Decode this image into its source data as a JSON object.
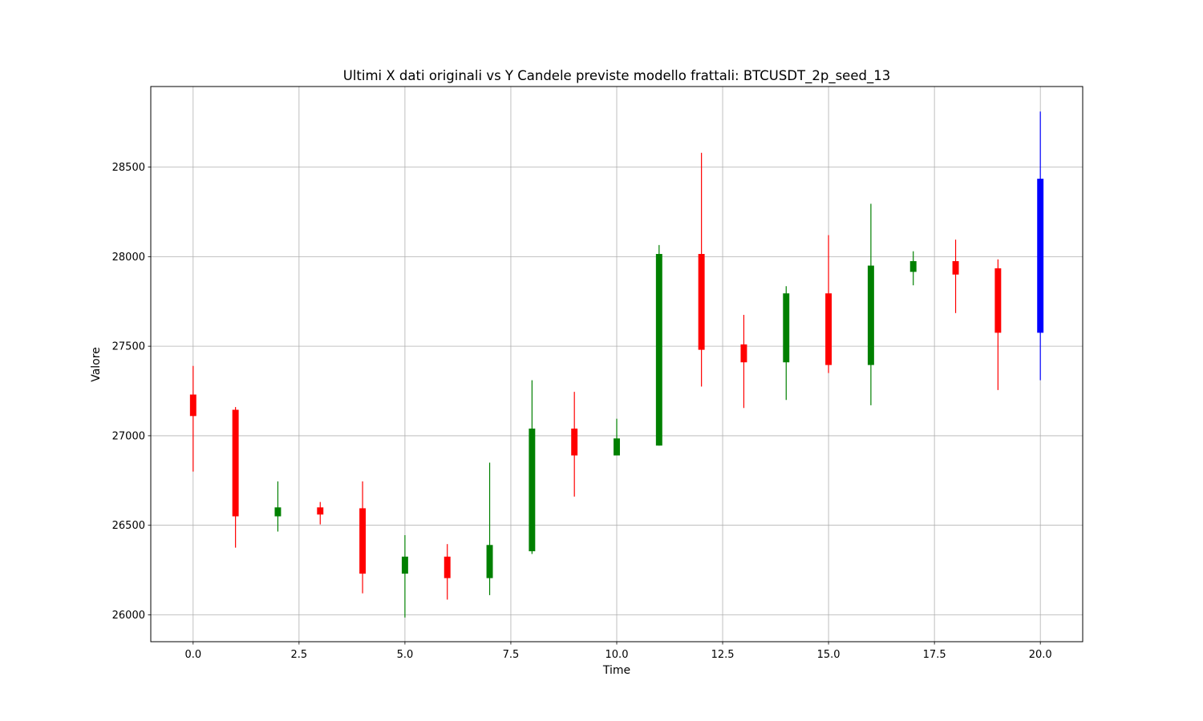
{
  "chart_data": {
    "type": "candlestick",
    "title": "Ultimi X dati originali vs Y Candele previste modello frattali: BTCUSDT_2p_seed_13",
    "xlabel": "Time",
    "ylabel": "Valore",
    "xlim": [
      -1,
      21
    ],
    "ylim": [
      25850,
      28950
    ],
    "xticks": [
      0.0,
      2.5,
      5.0,
      7.5,
      10.0,
      12.5,
      15.0,
      17.5,
      20.0
    ],
    "xtick_labels": [
      "0.0",
      "2.5",
      "5.0",
      "7.5",
      "10.0",
      "12.5",
      "15.0",
      "17.5",
      "20.0"
    ],
    "yticks": [
      26000,
      26500,
      27000,
      27500,
      28000,
      28500
    ],
    "ytick_labels": [
      "26000",
      "26500",
      "27000",
      "27500",
      "28000",
      "28500"
    ],
    "grid": true,
    "colors": {
      "up": "#008000",
      "down": "#ff0000",
      "predicted": "#0000ff"
    },
    "candles": [
      {
        "t": 0,
        "open": 27230,
        "close": 27110,
        "high": 27390,
        "low": 26800,
        "kind": "down"
      },
      {
        "t": 1,
        "open": 27145,
        "close": 26550,
        "high": 27160,
        "low": 26375,
        "kind": "down"
      },
      {
        "t": 2,
        "open": 26550,
        "close": 26600,
        "high": 26745,
        "low": 26465,
        "kind": "up"
      },
      {
        "t": 3,
        "open": 26600,
        "close": 26560,
        "high": 26630,
        "low": 26505,
        "kind": "down"
      },
      {
        "t": 4,
        "open": 26595,
        "close": 26230,
        "high": 26745,
        "low": 26120,
        "kind": "down"
      },
      {
        "t": 5,
        "open": 26230,
        "close": 26325,
        "high": 26445,
        "low": 25985,
        "kind": "up"
      },
      {
        "t": 6,
        "open": 26325,
        "close": 26205,
        "high": 26395,
        "low": 26085,
        "kind": "down"
      },
      {
        "t": 7,
        "open": 26205,
        "close": 26390,
        "high": 26850,
        "low": 26110,
        "kind": "up"
      },
      {
        "t": 8,
        "open": 26355,
        "close": 27040,
        "high": 27310,
        "low": 26340,
        "kind": "up"
      },
      {
        "t": 9,
        "open": 27040,
        "close": 26890,
        "high": 27245,
        "low": 26660,
        "kind": "down"
      },
      {
        "t": 10,
        "open": 26890,
        "close": 26985,
        "high": 27095,
        "low": 26890,
        "kind": "up"
      },
      {
        "t": 11,
        "open": 26945,
        "close": 28015,
        "high": 28065,
        "low": 26945,
        "kind": "up"
      },
      {
        "t": 12,
        "open": 28015,
        "close": 27480,
        "high": 28580,
        "low": 27275,
        "kind": "down"
      },
      {
        "t": 13,
        "open": 27510,
        "close": 27410,
        "high": 27675,
        "low": 27155,
        "kind": "down"
      },
      {
        "t": 14,
        "open": 27410,
        "close": 27795,
        "high": 27835,
        "low": 27200,
        "kind": "up"
      },
      {
        "t": 15,
        "open": 27795,
        "close": 27395,
        "high": 28120,
        "low": 27350,
        "kind": "down"
      },
      {
        "t": 16,
        "open": 27395,
        "close": 27950,
        "high": 28295,
        "low": 27170,
        "kind": "up"
      },
      {
        "t": 17,
        "open": 27915,
        "close": 27975,
        "high": 28030,
        "low": 27840,
        "kind": "up"
      },
      {
        "t": 18,
        "open": 27975,
        "close": 27900,
        "high": 28095,
        "low": 27685,
        "kind": "down"
      },
      {
        "t": 19,
        "open": 27935,
        "close": 27575,
        "high": 27985,
        "low": 27255,
        "kind": "down"
      },
      {
        "t": 20,
        "open": 27575,
        "close": 28435,
        "high": 28810,
        "low": 27310,
        "kind": "predicted"
      }
    ]
  }
}
